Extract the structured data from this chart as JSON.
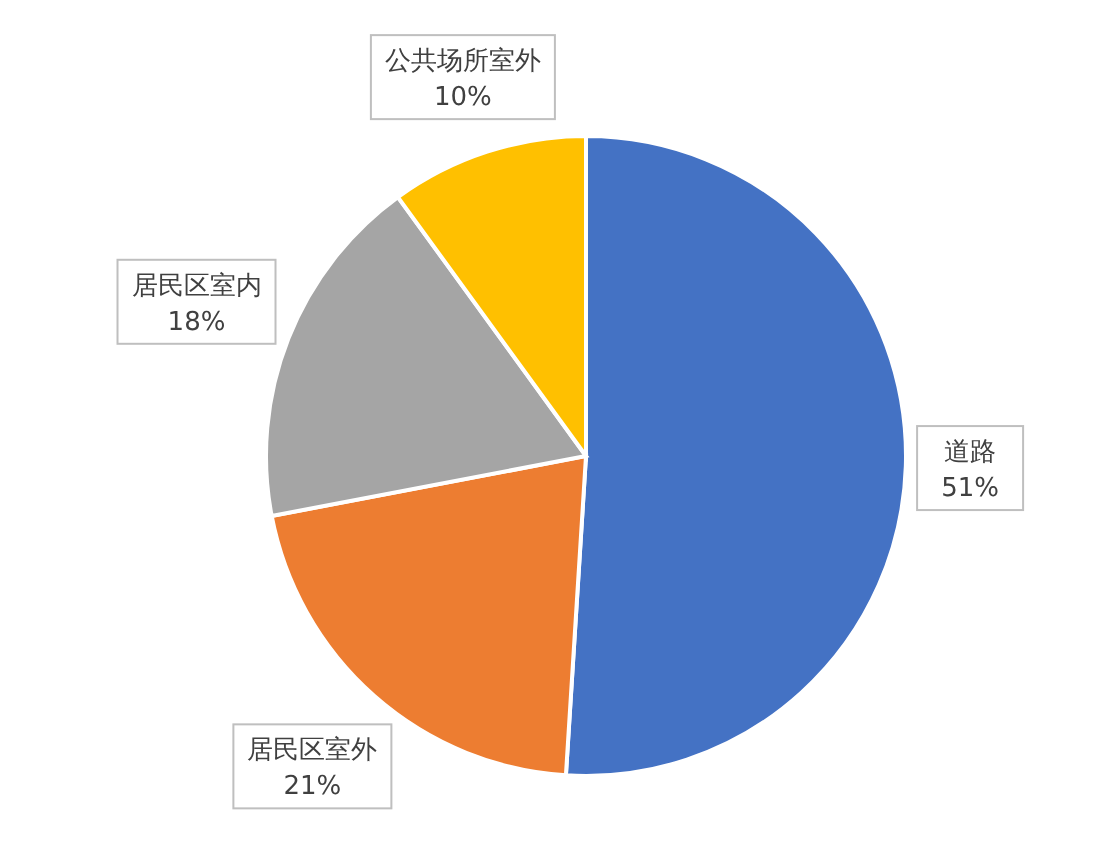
{
  "chart_data": {
    "type": "pie",
    "categories": [
      "道路",
      "居民区室外",
      "居民区室内",
      "公共场所室外"
    ],
    "values": [
      51,
      21,
      18,
      10
    ],
    "colors": [
      "#4472c4",
      "#ed7d31",
      "#a5a5a5",
      "#ffc000"
    ],
    "value_labels": [
      "51%",
      "21%",
      "18%",
      "10%"
    ],
    "legend": false
  }
}
